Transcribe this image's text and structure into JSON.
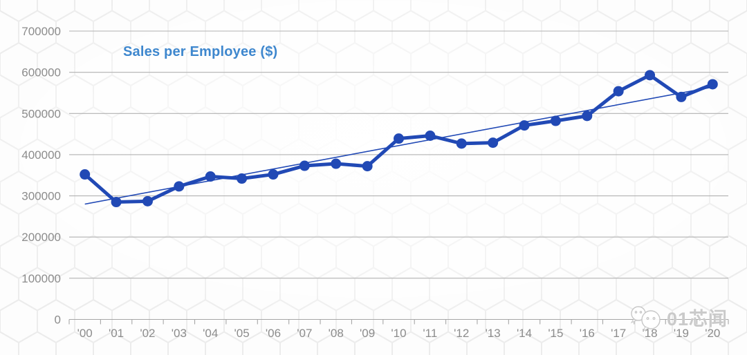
{
  "chart_data": {
    "type": "line",
    "title": "Sales per Employee ($)",
    "categories": [
      "'00",
      "'01",
      "'02",
      "'03",
      "'04",
      "'05",
      "'06",
      "'07",
      "'08",
      "'09",
      "'10",
      "'11",
      "'12",
      "'13",
      "'14",
      "'15",
      "'16",
      "'17",
      "'18",
      "'19",
      "'20"
    ],
    "series": [
      {
        "name": "Sales per Employee ($)",
        "values": [
          352000,
          285000,
          287000,
          323000,
          347000,
          342000,
          352000,
          373000,
          378000,
          372000,
          439000,
          446000,
          427000,
          429000,
          471000,
          482000,
          494000,
          554000,
          593000,
          540000,
          571000
        ]
      }
    ],
    "trendline": {
      "type": "linear",
      "start_value": 280000,
      "end_value": 564000
    },
    "ylim": [
      0,
      700000
    ],
    "yticks": [
      0,
      100000,
      200000,
      300000,
      400000,
      500000,
      600000,
      700000
    ],
    "xlabel": "",
    "ylabel": "",
    "grid": "horizontal",
    "legend": "none"
  },
  "colors": {
    "series": "#2149b5",
    "trendline": "#2149b5",
    "title": "#3e87ce",
    "axis_text": "#8c8c8c",
    "gridline": "#b1b1b1",
    "axis_line": "#a6a6a6",
    "background": "#fdfdfd",
    "pattern_stroke": "#ececec",
    "watermark": "#c1c1c1"
  },
  "watermark": {
    "text": "01芯闻",
    "icon": "chat-bubbles-icon"
  }
}
